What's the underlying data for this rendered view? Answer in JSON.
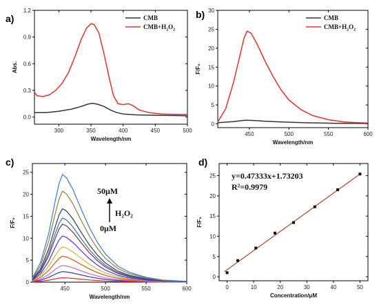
{
  "chart_data": [
    {
      "id": "a",
      "type": "line",
      "panel_label": "a)",
      "xlabel": "Wavelength/nm",
      "ylabel": "Abs.",
      "xlim": [
        262,
        500
      ],
      "ylim": [
        -0.08,
        1.2
      ],
      "xticks": [
        "300",
        "350",
        "400",
        "450",
        "500"
      ],
      "yticks": [
        "0.0",
        "0.3",
        "0.6",
        "0.9",
        "1.2"
      ],
      "legend_position": "top-right",
      "series": [
        {
          "name": "CMB",
          "color": "#333333",
          "points": [
            [
              262,
              0.05
            ],
            [
              280,
              0.05
            ],
            [
              300,
              0.065
            ],
            [
              320,
              0.09
            ],
            [
              335,
              0.12
            ],
            [
              345,
              0.145
            ],
            [
              352,
              0.155
            ],
            [
              360,
              0.145
            ],
            [
              370,
              0.12
            ],
            [
              380,
              0.08
            ],
            [
              390,
              0.05
            ],
            [
              400,
              0.035
            ],
            [
              420,
              0.025
            ],
            [
              450,
              0.02
            ],
            [
              500,
              0.015
            ]
          ]
        },
        {
          "name": "CMB+H2O2",
          "color": "#e8302a",
          "points": [
            [
              262,
              0.28
            ],
            [
              266,
              0.24
            ],
            [
              275,
              0.23
            ],
            [
              285,
              0.25
            ],
            [
              295,
              0.3
            ],
            [
              305,
              0.38
            ],
            [
              315,
              0.5
            ],
            [
              325,
              0.68
            ],
            [
              335,
              0.88
            ],
            [
              343,
              1.0
            ],
            [
              350,
              1.05
            ],
            [
              355,
              1.04
            ],
            [
              362,
              0.95
            ],
            [
              370,
              0.72
            ],
            [
              378,
              0.45
            ],
            [
              385,
              0.24
            ],
            [
              392,
              0.15
            ],
            [
              400,
              0.14
            ],
            [
              408,
              0.15
            ],
            [
              415,
              0.13
            ],
            [
              425,
              0.08
            ],
            [
              440,
              0.05
            ],
            [
              460,
              0.035
            ],
            [
              480,
              0.03
            ],
            [
              500,
              0.03
            ]
          ]
        }
      ]
    },
    {
      "id": "b",
      "type": "line",
      "panel_label": "b)",
      "xlabel": "Wavelength/nm",
      "ylabel": "F/F₀",
      "xlim": [
        410,
        600
      ],
      "ylim": [
        -1,
        30
      ],
      "xticks": [
        "450",
        "500",
        "550",
        "600"
      ],
      "yticks": [
        "0",
        "5",
        "10",
        "15",
        "20",
        "25",
        "30"
      ],
      "legend_position": "top-right",
      "series": [
        {
          "name": "CMB",
          "color": "#333333",
          "points": [
            [
              410,
              0.3
            ],
            [
              430,
              0.6
            ],
            [
              445,
              0.95
            ],
            [
              455,
              0.9
            ],
            [
              470,
              0.7
            ],
            [
              490,
              0.5
            ],
            [
              520,
              0.3
            ],
            [
              560,
              0.15
            ],
            [
              600,
              0.1
            ]
          ]
        },
        {
          "name": "CMB+H2O2",
          "color": "#e8302a",
          "points": [
            [
              410,
              0.5
            ],
            [
              420,
              4
            ],
            [
              430,
              11
            ],
            [
              438,
              18
            ],
            [
              443,
              22.5
            ],
            [
              447,
              24.5
            ],
            [
              452,
              24
            ],
            [
              460,
              21
            ],
            [
              470,
              16.5
            ],
            [
              480,
              12.5
            ],
            [
              490,
              9
            ],
            [
              500,
              6.3
            ],
            [
              515,
              3.8
            ],
            [
              530,
              2.2
            ],
            [
              550,
              1.1
            ],
            [
              570,
              0.5
            ],
            [
              600,
              0.2
            ]
          ]
        }
      ]
    },
    {
      "id": "c",
      "type": "line",
      "panel_label": "c)",
      "xlabel": "Wavelength/nm",
      "ylabel": "F/F₀",
      "xlim": [
        410,
        600
      ],
      "ylim": [
        0,
        27
      ],
      "xticks": [
        "450",
        "500",
        "550",
        "600"
      ],
      "yticks": [
        "0",
        "5",
        "10",
        "15",
        "20",
        "25"
      ],
      "annotations": [
        "50μM",
        "H₂O₂",
        "0μM"
      ],
      "series": [
        {
          "peak": 1.0,
          "color": "#ff2222"
        },
        {
          "peak": 2.4,
          "color": "#2233cc"
        },
        {
          "peak": 3.8,
          "color": "#cc66cc"
        },
        {
          "peak": 5.9,
          "color": "#dd5500"
        },
        {
          "peak": 8.0,
          "color": "#bbbb44"
        },
        {
          "peak": 10.5,
          "color": "#4a2bff"
        },
        {
          "peak": 13.2,
          "color": "#7a2a6a"
        },
        {
          "peak": 14.6,
          "color": "#2f7a84"
        },
        {
          "peak": 16.7,
          "color": "#333366"
        },
        {
          "peak": 20.7,
          "color": "#9a7a3a"
        },
        {
          "peak": 24.5,
          "color": "#3a7ad0"
        }
      ],
      "shape": [
        [
          410,
          0.04
        ],
        [
          420,
          0.18
        ],
        [
          430,
          0.45
        ],
        [
          438,
          0.75
        ],
        [
          443,
          0.92
        ],
        [
          447,
          1.0
        ],
        [
          452,
          0.97
        ],
        [
          460,
          0.86
        ],
        [
          470,
          0.68
        ],
        [
          480,
          0.51
        ],
        [
          490,
          0.37
        ],
        [
          500,
          0.26
        ],
        [
          515,
          0.15
        ],
        [
          530,
          0.09
        ],
        [
          550,
          0.045
        ],
        [
          570,
          0.02
        ],
        [
          600,
          0.008
        ]
      ]
    },
    {
      "id": "d",
      "type": "scatter",
      "panel_label": "d)",
      "xlabel": "Concentration/μM",
      "ylabel": "F/F₀",
      "xlim": [
        -3,
        53
      ],
      "ylim": [
        -1,
        28
      ],
      "xticks": [
        "0",
        "10",
        "20",
        "30",
        "40",
        "50"
      ],
      "yticks": [
        "0",
        "5",
        "10",
        "15",
        "20",
        "25"
      ],
      "equation": "y=0.47333x+1.73203",
      "r2": "R²=0.9979",
      "fit": {
        "slope": 0.47333,
        "intercept": 1.73203
      },
      "points": [
        [
          0,
          1.0
        ],
        [
          4,
          4.0
        ],
        [
          10.8,
          7.1
        ],
        [
          18,
          10.8
        ],
        [
          25,
          13.4
        ],
        [
          33,
          17.3
        ],
        [
          41.6,
          21.5
        ],
        [
          50,
          25.4
        ]
      ]
    }
  ]
}
